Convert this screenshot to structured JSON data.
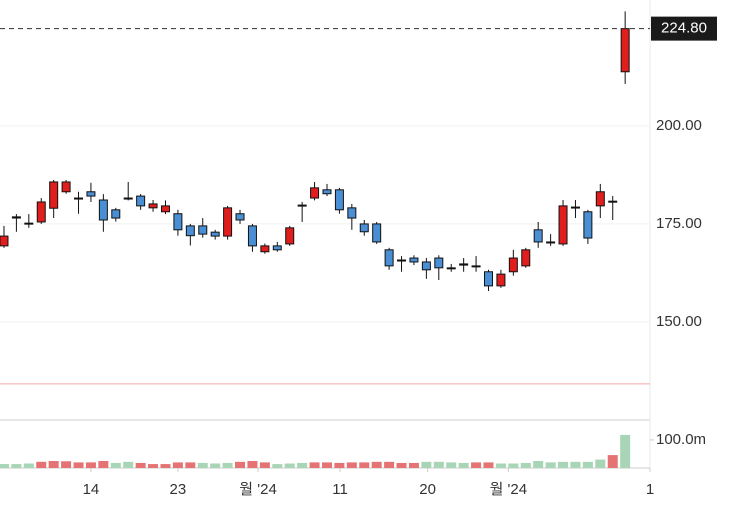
{
  "chart_data": {
    "type": "candlestick",
    "open": [
      169.4,
      176.5,
      175,
      175.5,
      179,
      183.2,
      181.5,
      183.2,
      181.1,
      178.6,
      181.6,
      182.1,
      179.1,
      178.1,
      177.6,
      174.5,
      174.5,
      172.9,
      171.9,
      177.6,
      174.5,
      167.9,
      169.4,
      169.9,
      179.6,
      181.6,
      183.7,
      183.7,
      179.1,
      175,
      175,
      168.4,
      165.8,
      166.3,
      165.3,
      166.3,
      163.8,
      164.8,
      164.3,
      162.8,
      159.2,
      162.8,
      164.3,
      173.5,
      170.4,
      169.9,
      179.1,
      178.1,
      179.6,
      180.6,
      213.8
    ],
    "high": [
      174.5,
      177.5,
      177.5,
      181.6,
      186.2,
      186.2,
      183.2,
      185.5,
      182.6,
      179.1,
      185.7,
      182.6,
      181.1,
      181,
      178.6,
      175,
      176.5,
      173.5,
      179.6,
      178.6,
      175,
      170,
      170.4,
      174.5,
      180.6,
      185.7,
      185.2,
      184.2,
      180.1,
      176,
      175.5,
      168.9,
      166.8,
      167,
      166.3,
      167,
      164.8,
      166.3,
      166.8,
      163.3,
      163.3,
      168.4,
      168.9,
      175.5,
      172.4,
      181.1,
      181.1,
      178.6,
      185.2,
      182.1,
      229.2
    ],
    "low": [
      168.9,
      173,
      174,
      175,
      176.5,
      182.7,
      177.6,
      180.6,
      173,
      175.6,
      181,
      178.6,
      178.1,
      177.5,
      172,
      169.5,
      171.5,
      171,
      171,
      175,
      167.9,
      167.4,
      167.9,
      169.4,
      175.5,
      181,
      182.1,
      177.6,
      173.5,
      172,
      169.9,
      163.3,
      162.8,
      164.5,
      161,
      160.7,
      162.8,
      162.8,
      162.8,
      157.9,
      158.7,
      161.8,
      163.8,
      168.9,
      169.4,
      169.4,
      176.5,
      169.9,
      176.5,
      176,
      210.7
    ],
    "close": [
      171.9,
      176.8,
      175.2,
      180.6,
      185.7,
      185.7,
      181.6,
      182.1,
      176,
      176.5,
      181.4,
      179.6,
      180.1,
      179.6,
      173.5,
      172,
      172.4,
      171.9,
      179.1,
      176,
      169.4,
      169.4,
      168.4,
      174,
      179.8,
      184.2,
      182.7,
      178.6,
      176.5,
      173,
      170.4,
      164.3,
      165.6,
      165.3,
      163.3,
      163.8,
      163.6,
      164.5,
      164.1,
      159.2,
      162.2,
      166.3,
      168.4,
      170.4,
      170.2,
      179.6,
      179.3,
      171.4,
      183.2,
      180.8,
      224.8
    ],
    "up_color": "#e01e1e",
    "down_color": "#4a8fd4",
    "last_label": "224.80",
    "reference_line": 134.2,
    "reference_color": "#f4a6a6",
    "ylim": [
      125,
      232.1
    ],
    "yticks": [
      {
        "value": 150,
        "label": "150.00"
      },
      {
        "value": 175,
        "label": "175.00"
      },
      {
        "value": 200,
        "label": "200.00"
      }
    ],
    "xlim": [
      -0.32,
      52
    ],
    "xticks": [
      {
        "value": 7,
        "label": "14"
      },
      {
        "value": 14,
        "label": "23"
      },
      {
        "value": 20.45,
        "label": "월 '24"
      },
      {
        "value": 27.05,
        "label": "11"
      },
      {
        "value": 34.1,
        "label": "20"
      },
      {
        "value": 40.6,
        "label": "월 '24"
      },
      {
        "value": 52,
        "label": "1"
      }
    ],
    "grid": true,
    "volume": {
      "values": [
        14,
        14,
        16,
        22,
        25,
        24,
        20,
        20,
        25,
        18,
        22,
        18,
        14,
        14,
        20,
        20,
        18,
        16,
        18,
        22,
        25,
        20,
        14,
        16,
        18,
        20,
        20,
        18,
        20,
        20,
        22,
        22,
        18,
        18,
        22,
        22,
        20,
        18,
        20,
        20,
        16,
        16,
        18,
        25,
        20,
        22,
        22,
        22,
        30,
        46,
        118
      ],
      "colors": [
        "#a8d5b5",
        "#a8d5b5",
        "#a8d5b5",
        "#e57373",
        "#e57373",
        "#e57373",
        "#e57373",
        "#e57373",
        "#e57373",
        "#a8d5b5",
        "#a8d5b5",
        "#e57373",
        "#e57373",
        "#e57373",
        "#e57373",
        "#e57373",
        "#a8d5b5",
        "#a8d5b5",
        "#a8d5b5",
        "#e57373",
        "#e57373",
        "#e57373",
        "#a8d5b5",
        "#a8d5b5",
        "#a8d5b5",
        "#e57373",
        "#e57373",
        "#e57373",
        "#e57373",
        "#e57373",
        "#e57373",
        "#e57373",
        "#e57373",
        "#e57373",
        "#a8d5b5",
        "#a8d5b5",
        "#a8d5b5",
        "#a8d5b5",
        "#e57373",
        "#e57373",
        "#a8d5b5",
        "#a8d5b5",
        "#a8d5b5",
        "#a8d5b5",
        "#a8d5b5",
        "#a8d5b5",
        "#a8d5b5",
        "#a8d5b5",
        "#a8d5b5",
        "#e57373",
        "#a8d5b5"
      ],
      "ylim": [
        0,
        164
      ],
      "yticks": [
        {
          "value": 100,
          "label": "100.0m"
        }
      ]
    }
  }
}
